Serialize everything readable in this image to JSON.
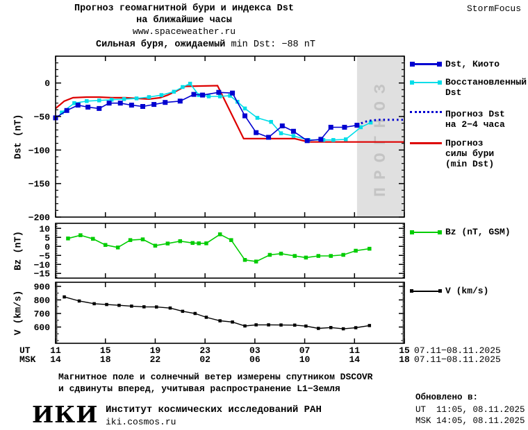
{
  "header": {
    "title_line1": "Прогноз геомагнитной бури и индекса Dst",
    "title_line2": "на ближайшие часы",
    "title_line3": "www.spaceweather.ru",
    "brand": "StormFocus"
  },
  "alert": {
    "label_bold": "Сильная буря, ожидаемый",
    "label_value": " min Dst: −88 nT",
    "swatch_color": "#ffff00"
  },
  "legend": {
    "kyoto": "Dst, Киото",
    "restored_line1": "Восстановленный",
    "restored_line2": "Dst",
    "forecast_line1": "Прогноз Dst",
    "forecast_line2": "на 2−4 часа",
    "storm_line1": "Прогноз",
    "storm_line2": "силы бури",
    "storm_line3": "(min Dst)",
    "bz": "Bz (nT, GSM)",
    "v": "V (km/s)"
  },
  "axes": {
    "dst_label": "Dst (nT)",
    "bz_label": "Bz (nT)",
    "v_label": "V (km/s)",
    "ut_prefix": "UT",
    "msk_prefix": "MSK",
    "ut_date": "07.11−08.11.2025",
    "msk_date": "07.11−08.11.2025"
  },
  "footer": {
    "note_line1": "Магнитное поле и солнечный ветер измерены спутником DSCOVR",
    "note_line2": "и сдвинуты вперед, учитывая распространение L1−Земля",
    "logo": "ИКИ",
    "institute": "Институт космических исследований РАН",
    "site": "iki.cosmos.ru",
    "updated_label": "Обновлено в:",
    "updated_ut": "UT  11:05, 08.11.2025",
    "updated_msk": "MSK 14:05, 08.11.2025"
  },
  "colors": {
    "kyoto": "#0000d0",
    "restored": "#00dde8",
    "forecast_dotted": "#0000d0",
    "storm_forecast": "#dd0000",
    "bz": "#00cc00",
    "v": "#000000",
    "forecast_band": "#e0e0e0",
    "band_text": "#c4c4c4",
    "alert": "#ffff00"
  },
  "chart_data": [
    {
      "type": "line",
      "title": "Dst (nT)",
      "x_unit": "hours since 07.11.2025 11:00 UT",
      "ylim": [
        40,
        -200
      ],
      "yticks": [
        0,
        -50,
        -100,
        -150,
        -200
      ],
      "xticks_hours": [
        0,
        4,
        8,
        12,
        16,
        20,
        24,
        28
      ],
      "xtick_labels_ut": [
        "11",
        "15",
        "19",
        "23",
        "03",
        "07",
        "11",
        "15"
      ],
      "xtick_labels_msk": [
        "14",
        "18",
        "22",
        "02",
        "06",
        "10",
        "14",
        "18"
      ],
      "forecast_band": {
        "start_hour": 24.2,
        "end_hour": 28,
        "label": "ПРОГНОЗ"
      },
      "expected_min_dst_nt": -88,
      "series": [
        {
          "name": "Прогноз силы бури (min Dst)",
          "color": "#dd0000",
          "style": "solid",
          "marker": "none",
          "width": 2.2,
          "x": [
            0,
            0.7,
            1.4,
            2.5,
            3.5,
            4.5,
            5.6,
            6.5,
            7.5,
            8.4,
            9.0,
            9.7,
            10.4,
            13.0,
            15.1,
            19.2,
            20.3,
            28.0
          ],
          "y": [
            -38,
            -27,
            -22,
            -21,
            -21,
            -22,
            -22,
            -23,
            -24,
            -22,
            -18,
            -12,
            -5,
            -4,
            -83,
            -83,
            -88,
            -88
          ]
        },
        {
          "name": "Восстановленный Dst",
          "color": "#00dde8",
          "style": "solid",
          "marker": "square",
          "msize": 5.5,
          "width": 1.6,
          "x": [
            0.5,
            1.5,
            2.5,
            3.5,
            4.5,
            5.5,
            6.5,
            7.5,
            8.5,
            9.5,
            10.2,
            10.8,
            11.5,
            12.3,
            13.2,
            14.0,
            14.6,
            15.2,
            16.2,
            17.3,
            18.1,
            19.1,
            20.3,
            21.5,
            22.3,
            23.3,
            24.5,
            25.3
          ],
          "y": [
            -44,
            -30,
            -27,
            -26,
            -25,
            -24,
            -23,
            -21,
            -18,
            -13,
            -6,
            -1,
            -18,
            -20,
            -20,
            -19,
            -28,
            -38,
            -52,
            -58,
            -75,
            -79,
            -85,
            -85,
            -85,
            -84,
            -66,
            -59
          ]
        },
        {
          "name": "Dst, Киото",
          "color": "#0000d0",
          "style": "solid",
          "marker": "square",
          "msize": 7,
          "width": 1.6,
          "x": [
            0,
            0.9,
            1.8,
            2.6,
            3.5,
            4.3,
            5.2,
            6.1,
            7.0,
            7.9,
            8.8,
            10.0,
            11.1,
            11.8,
            13.1,
            14.2,
            15.2,
            16.1,
            17.1,
            18.2,
            19.1,
            20.2,
            21.3,
            22.1,
            23.2,
            24.2
          ],
          "y": [
            -52,
            -41,
            -33,
            -36,
            -38,
            -30,
            -30,
            -33,
            -35,
            -32,
            -29,
            -27,
            -17,
            -18,
            -14,
            -15,
            -49,
            -74,
            -81,
            -64,
            -72,
            -86,
            -84,
            -66,
            -66,
            -63
          ]
        },
        {
          "name": "Прогноз Dst на 2−4 часа",
          "color": "#0000d0",
          "style": "dotted",
          "marker": "none",
          "width": 3,
          "x": [
            24.2,
            24.8,
            25.3,
            25.9,
            26.5,
            27.1,
            27.7,
            28.0
          ],
          "y": [
            -63,
            -58,
            -56,
            -55,
            -55,
            -55,
            -55,
            -55
          ]
        }
      ]
    },
    {
      "type": "line",
      "title": "Bz (nT)",
      "ylim": [
        12.8,
        -17.6
      ],
      "yticks": [
        10,
        5,
        0,
        -5,
        -10,
        -15
      ],
      "xticks_hours": [
        0,
        4,
        8,
        12,
        16,
        20,
        24,
        28
      ],
      "series": [
        {
          "name": "Bz (nT, GSM)",
          "color": "#00cc00",
          "style": "solid",
          "marker": "square",
          "msize": 5.5,
          "width": 1.6,
          "x": [
            1,
            2,
            3,
            4,
            5,
            6,
            7,
            8,
            9,
            10,
            11,
            11.5,
            12.1,
            13.2,
            14.1,
            15.2,
            16.1,
            17.2,
            18.1,
            19.2,
            20.1,
            21.1,
            22.1,
            23.1,
            24.1,
            25.2
          ],
          "y": [
            4.4,
            6.2,
            4.2,
            0.8,
            -0.6,
            3.5,
            3.9,
            0.4,
            1.6,
            2.9,
            1.9,
            1.7,
            1.7,
            6.7,
            3.5,
            -7.5,
            -8.4,
            -4.7,
            -4.0,
            -5.3,
            -6.2,
            -5.3,
            -5.3,
            -4.7,
            -2.4,
            -1.3
          ]
        }
      ]
    },
    {
      "type": "line",
      "title": "V (km/s)",
      "ylim": [
        930,
        480
      ],
      "yticks": [
        900,
        800,
        700,
        600
      ],
      "xticks_hours": [
        0,
        4,
        8,
        12,
        16,
        20,
        24,
        28
      ],
      "series": [
        {
          "name": "V (km/s)",
          "color": "#000000",
          "style": "solid",
          "marker": "square",
          "msize": 4.5,
          "width": 1.4,
          "x": [
            0.7,
            1.9,
            3.1,
            4.1,
            5.1,
            6.1,
            7.1,
            8.1,
            9.2,
            10.2,
            11.2,
            12.1,
            13.2,
            14.2,
            15.2,
            16.1,
            17.1,
            18.1,
            19.2,
            20.1,
            21.1,
            22.1,
            23.1,
            24.1,
            25.2
          ],
          "y": [
            822,
            792,
            772,
            766,
            760,
            754,
            749,
            748,
            740,
            716,
            700,
            672,
            646,
            637,
            608,
            616,
            616,
            615,
            614,
            607,
            590,
            596,
            587,
            595,
            611
          ]
        }
      ]
    }
  ]
}
